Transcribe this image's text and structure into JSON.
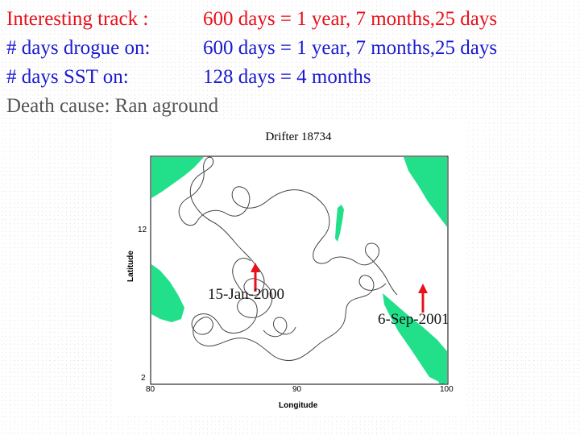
{
  "stats": [
    {
      "label": "Interesting track :",
      "value": "600 days = 1 year, 7 months,25 days",
      "color": "#e8101a"
    },
    {
      "label": "# days drogue on:",
      "value": "600 days = 1 year, 7 months,25 days",
      "color": "#1a1ad0"
    },
    {
      "label": "# days SST on:",
      "value": "128 days = 4 months",
      "color": "#1a1ad0"
    },
    {
      "label": "Death cause: Ran aground",
      "value": "",
      "color": "#555555"
    }
  ],
  "map": {
    "title": "Drifter 18734",
    "xlabel": "Longitude",
    "ylabel": "Latitude",
    "x_ticks": [
      "80",
      "90",
      "100"
    ],
    "y_ticks": [
      "12",
      "2"
    ],
    "land_color": "#22e08a",
    "track_color": "#444444"
  },
  "annotations": {
    "start": "15-Jan-2000",
    "end": "6-Sep-2001",
    "arrow_color": "#e8101a"
  }
}
